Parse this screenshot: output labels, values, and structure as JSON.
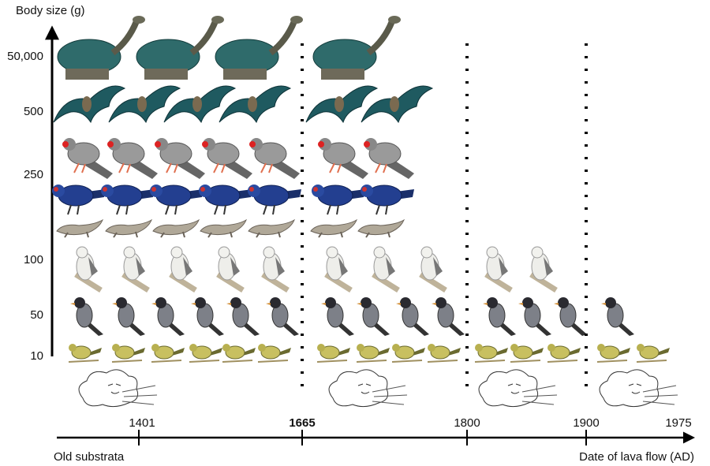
{
  "y_axis": {
    "title": "Body size (g)",
    "labels": [
      "50,000",
      "500",
      "250",
      "100",
      "50",
      "10"
    ]
  },
  "x_axis": {
    "title": "Date of lava flow (AD)",
    "start_label": "Old substrata",
    "labels": [
      "1401",
      "1665",
      "1800",
      "1900",
      "1975"
    ]
  }
}
